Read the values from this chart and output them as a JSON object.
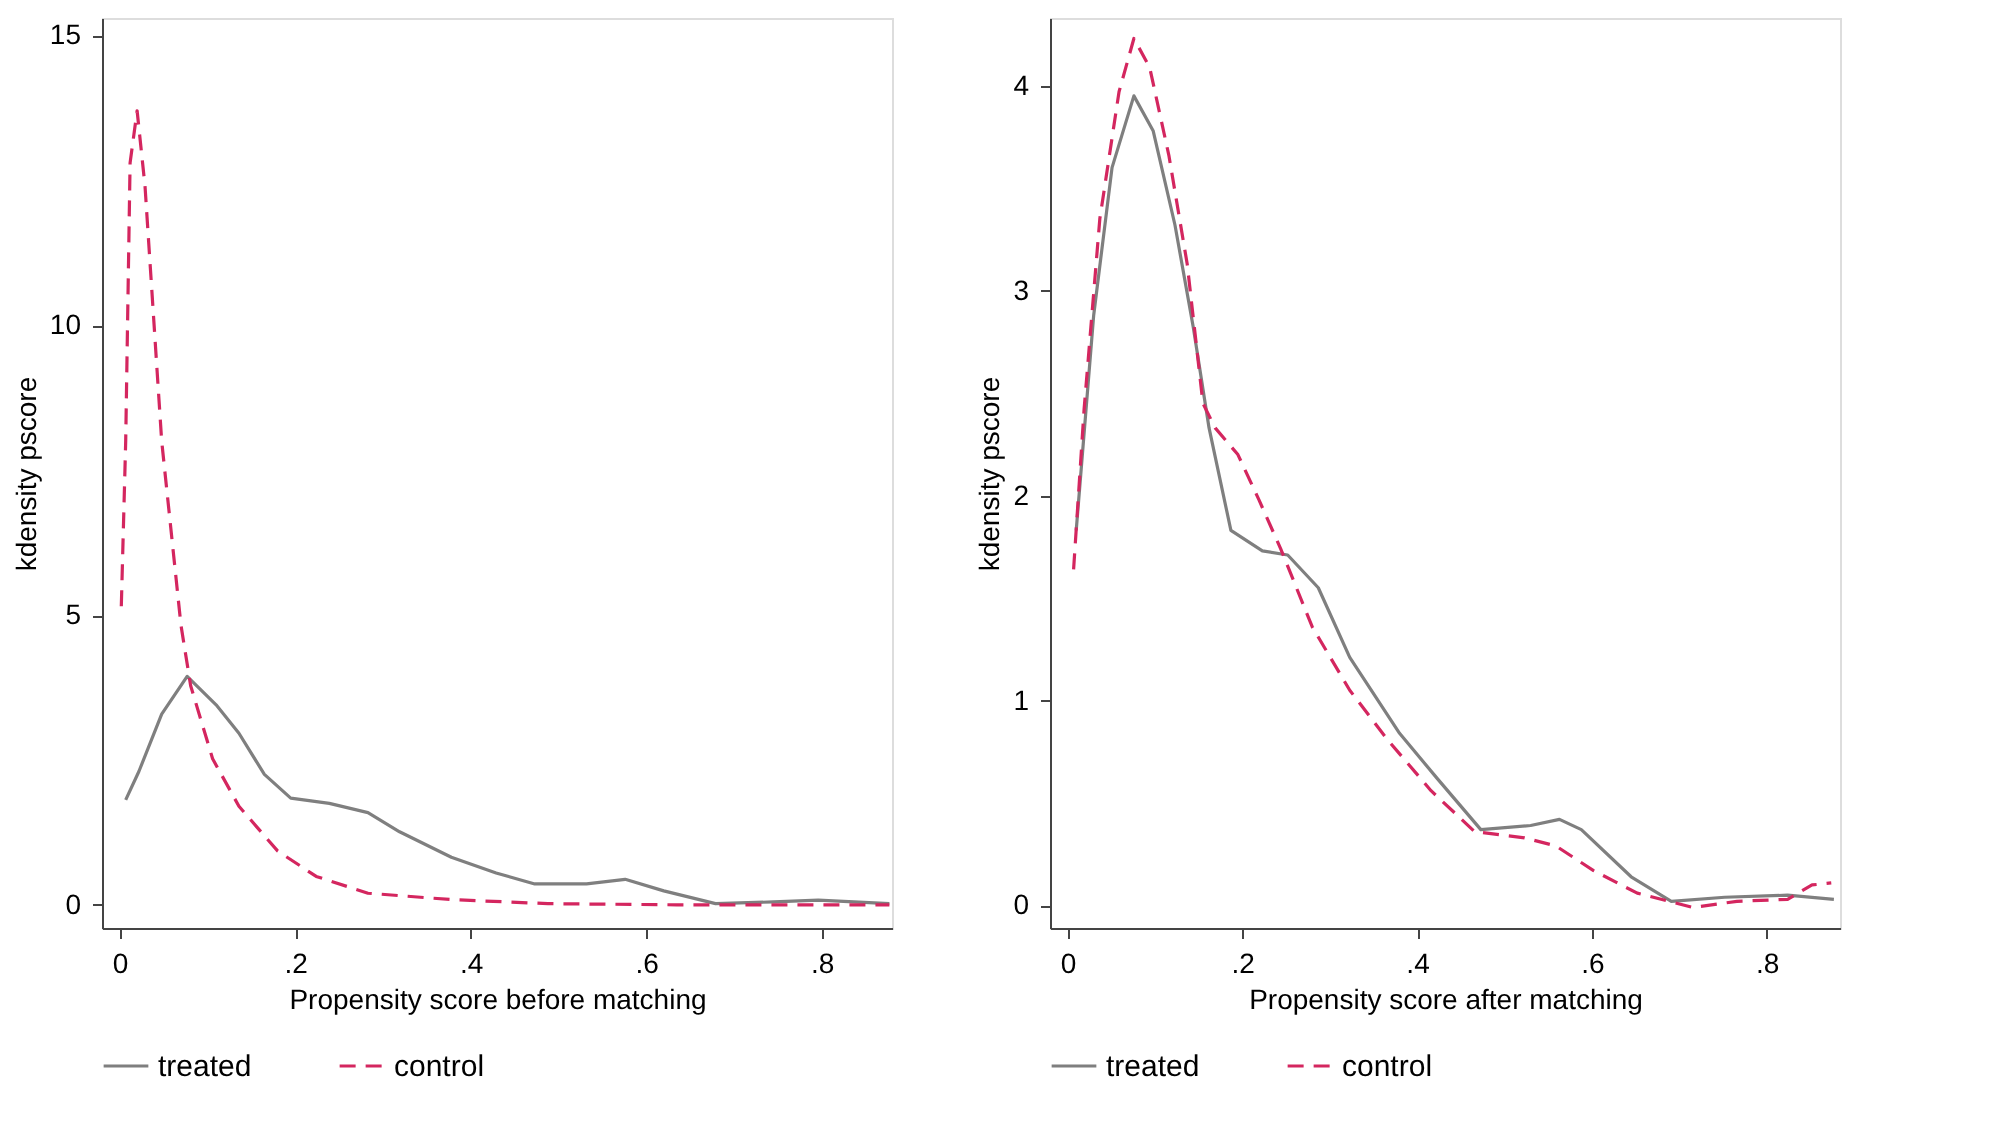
{
  "chart_data": [
    {
      "type": "line",
      "xlabel": "Propensity score before matching",
      "ylabel": "kdensity pscore",
      "xlim": [
        -0.02,
        0.88
      ],
      "ylim": [
        -0.4,
        15.3
      ],
      "xticks": [
        0,
        {
          "value": 0.2,
          "label": ".2"
        },
        {
          "value": 0.4,
          "label": ".4"
        },
        {
          "value": 0.6,
          "label": ".6"
        },
        {
          "value": 0.8,
          "label": ".8"
        }
      ],
      "yticks": [
        0,
        5,
        10,
        15
      ],
      "grid": false,
      "legend": "bottom",
      "series": [
        {
          "name": "treated",
          "color": "#7f7f7f",
          "line_style": "solid",
          "x": [
            0.007,
            0.022,
            0.048,
            0.077,
            0.11,
            0.136,
            0.165,
            0.195,
            0.239,
            0.283,
            0.319,
            0.378,
            0.429,
            0.473,
            0.532,
            0.576,
            0.62,
            0.679,
            0.745,
            0.796,
            0.877
          ],
          "values": [
            1.81,
            2.3,
            3.29,
            3.94,
            3.45,
            2.96,
            2.25,
            1.84,
            1.75,
            1.59,
            1.26,
            0.82,
            0.55,
            0.36,
            0.36,
            0.44,
            0.24,
            0.02,
            0.05,
            0.08,
            0.02
          ]
        },
        {
          "name": "control",
          "color": "#d4265f",
          "line_style": "dashed",
          "x": [
            0.002,
            0.007,
            0.012,
            0.02,
            0.029,
            0.048,
            0.07,
            0.081,
            0.106,
            0.136,
            0.18,
            0.224,
            0.283,
            0.378,
            0.488,
            0.635,
            0.782,
            0.877
          ],
          "values": [
            5.15,
            8.0,
            12.8,
            13.7,
            12.4,
            8.0,
            4.82,
            3.78,
            2.52,
            1.7,
            0.93,
            0.49,
            0.2,
            0.09,
            0.02,
            0.0,
            0.0,
            0.0
          ]
        }
      ]
    },
    {
      "type": "line",
      "xlabel": "Propensity score after matching",
      "ylabel": "kdensity pscore",
      "xlim": [
        -0.02,
        0.884
      ],
      "ylim": [
        -0.11,
        4.33
      ],
      "xticks": [
        0,
        {
          "value": 0.2,
          "label": ".2"
        },
        {
          "value": 0.4,
          "label": ".4"
        },
        {
          "value": 0.6,
          "label": ".6"
        },
        {
          "value": 0.8,
          "label": ".8"
        }
      ],
      "yticks": [
        0,
        1,
        2,
        3,
        4
      ],
      "grid": false,
      "legend": "bottom",
      "series": [
        {
          "name": "treated",
          "color": "#7f7f7f",
          "line_style": "solid",
          "x": [
            0.01,
            0.03,
            0.051,
            0.076,
            0.098,
            0.123,
            0.144,
            0.162,
            0.187,
            0.223,
            0.252,
            0.287,
            0.323,
            0.38,
            0.423,
            0.473,
            0.53,
            0.563,
            0.588,
            0.645,
            0.691,
            0.752,
            0.824,
            0.877
          ],
          "values": [
            1.83,
            2.88,
            3.6,
            3.95,
            3.78,
            3.32,
            2.82,
            2.33,
            1.83,
            1.73,
            1.71,
            1.55,
            1.21,
            0.84,
            0.62,
            0.37,
            0.39,
            0.42,
            0.37,
            0.14,
            0.02,
            0.04,
            0.05,
            0.03
          ]
        },
        {
          "name": "control",
          "color": "#d4265f",
          "line_style": "dashed",
          "x": [
            0.007,
            0.019,
            0.037,
            0.059,
            0.076,
            0.094,
            0.116,
            0.137,
            0.155,
            0.169,
            0.195,
            0.219,
            0.244,
            0.28,
            0.323,
            0.366,
            0.416,
            0.466,
            0.523,
            0.559,
            0.602,
            0.652,
            0.716,
            0.766,
            0.824,
            0.852,
            0.874
          ],
          "values": [
            1.64,
            2.42,
            3.35,
            3.97,
            4.23,
            4.09,
            3.66,
            3.13,
            2.45,
            2.33,
            2.2,
            1.98,
            1.74,
            1.36,
            1.05,
            0.81,
            0.56,
            0.36,
            0.33,
            0.29,
            0.17,
            0.06,
            -0.01,
            0.02,
            0.03,
            0.1,
            0.11
          ]
        }
      ]
    }
  ]
}
